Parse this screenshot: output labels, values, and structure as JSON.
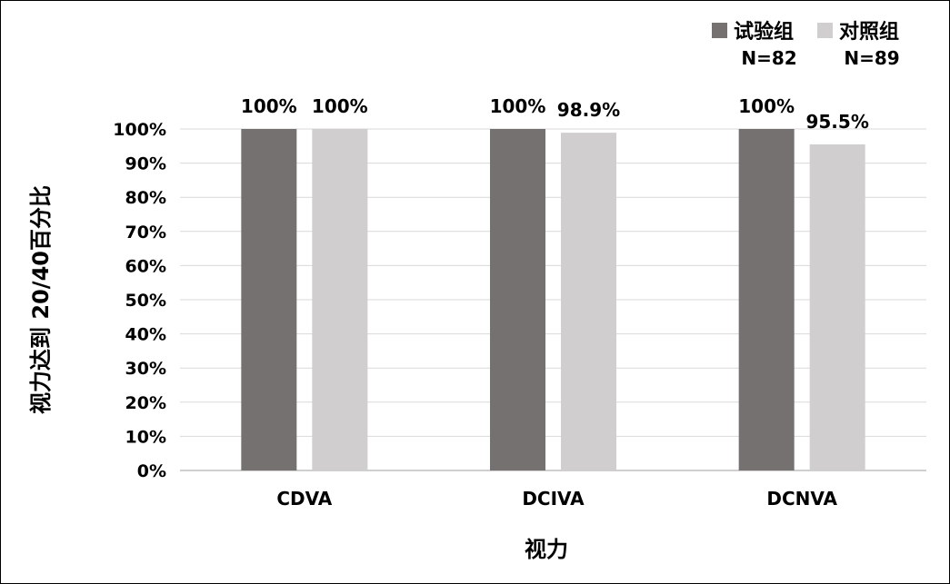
{
  "chart_data": {
    "type": "bar",
    "categories": [
      "CDVA",
      "DCIVA",
      "DCNVA"
    ],
    "series": [
      {
        "name": "试验组",
        "n_label": "N=82",
        "color": "#767171",
        "values": [
          100,
          100,
          100
        ],
        "labels": [
          "100%",
          "100%",
          "100%"
        ]
      },
      {
        "name": "对照组",
        "n_label": "N=89",
        "color": "#d0cece",
        "values": [
          100,
          98.9,
          95.5
        ],
        "labels": [
          "100%",
          "98.9%",
          "95.5%"
        ]
      }
    ],
    "xlabel": "视力",
    "ylabel": "视力达到 20/40百分比",
    "ylim": [
      0,
      100
    ],
    "yticks": [
      0,
      10,
      20,
      30,
      40,
      50,
      60,
      70,
      80,
      90,
      100
    ],
    "ytick_labels": [
      "0%",
      "10%",
      "20%",
      "30%",
      "40%",
      "50%",
      "60%",
      "70%",
      "80%",
      "90%",
      "100%"
    ],
    "grid": true,
    "legend": "top-right"
  }
}
